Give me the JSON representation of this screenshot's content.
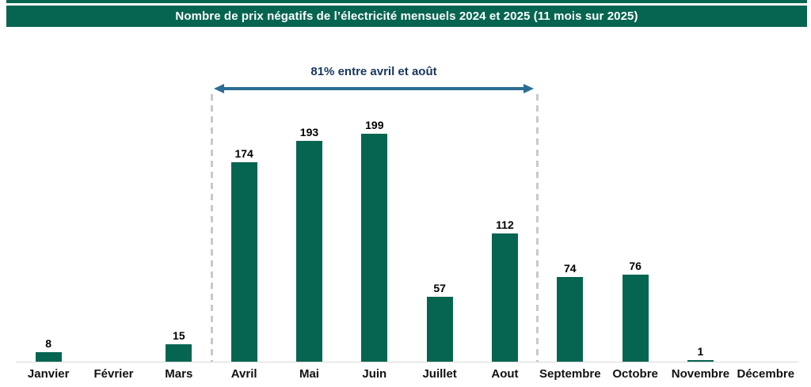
{
  "chart_data": {
    "type": "bar",
    "title": "Nombre de prix négatifs de l’électricité mensuels 2024 et 2025 (11 mois sur 2025)",
    "categories": [
      "Janvier",
      "Février",
      "Mars",
      "Avril",
      "Mai",
      "Juin",
      "Juillet",
      "Aout",
      "Septembre",
      "Octobre",
      "Novembre",
      "Décembre"
    ],
    "values": [
      8,
      0,
      15,
      174,
      193,
      199,
      57,
      112,
      74,
      76,
      1,
      null
    ],
    "xlabel": "",
    "ylabel": "",
    "ylim": [
      0,
      210
    ],
    "grid": false,
    "legend": false,
    "bar_color": "#066551",
    "annotation": "81% entre avril et août",
    "annotation_span": [
      "Avril",
      "Aout"
    ]
  },
  "colors": {
    "header_green": "#066551",
    "bar_green": "#066551",
    "arrow_blue": "#2b6e94",
    "annotation_text": "#17375e",
    "axis_gray": "#d9d9d9",
    "dash_gray": "#c9c9c9",
    "title_text": "#ffffff",
    "value_label_text": "#000000"
  }
}
